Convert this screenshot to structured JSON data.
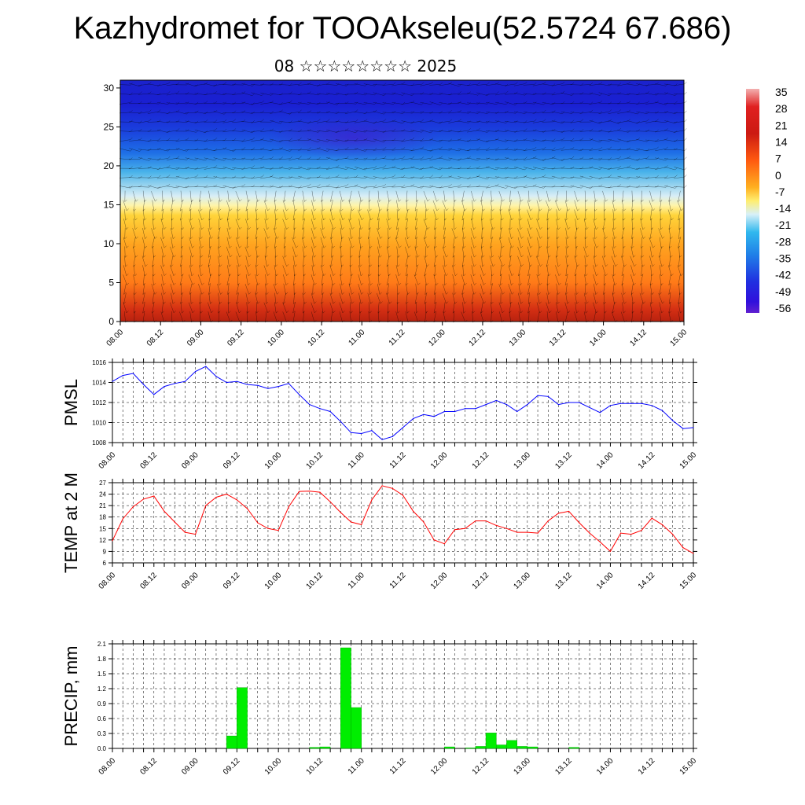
{
  "header": {
    "title": "Kazhydromet for TOOAkseleu(52.5724 67.686)",
    "subtitle": "08 ☆☆☆☆☆☆☆☆ 2025"
  },
  "colors": {
    "pmsl_line": "#0000ff",
    "temp_line": "#ff0000",
    "precip_bar": "#00ee00",
    "grid": "#000000"
  },
  "chart_data": [
    {
      "type": "heatmap",
      "name": "upper-air-section",
      "x_ticks": [
        "08.00",
        "08.12",
        "09.00",
        "09.12",
        "10.00",
        "10.12",
        "11.00",
        "11.12",
        "12.00",
        "12.12",
        "13.00",
        "13.12",
        "14.00",
        "14.12",
        "15.00"
      ],
      "y_ticks": [
        "0",
        "5",
        "10",
        "15",
        "20",
        "25",
        "30"
      ],
      "ylim": [
        0,
        31
      ],
      "colorbar_labels": [
        "35",
        "28",
        "21",
        "14",
        "7",
        "0",
        "-7",
        "-14",
        "-21",
        "-28",
        "-35",
        "-42",
        "-49",
        "-56"
      ],
      "overlay": "wind-barbs"
    },
    {
      "type": "line",
      "name": "pmsl",
      "ylabel": "PMSL",
      "ylim": [
        1008,
        1016
      ],
      "y_ticks": [
        "1008",
        "1010",
        "1012",
        "1014",
        "1016"
      ],
      "x_ticks": [
        "08.00",
        "08.12",
        "09.00",
        "09.12",
        "10.00",
        "10.12",
        "11.00",
        "11.12",
        "12.00",
        "12.12",
        "13.00",
        "13.12",
        "14.00",
        "14.12",
        "15.00"
      ],
      "x_range": [
        0,
        56
      ],
      "x": [
        0,
        1,
        2,
        3,
        4,
        5,
        6,
        7,
        8,
        9,
        10,
        11,
        12,
        13,
        14,
        15,
        16,
        17,
        18,
        19,
        20,
        21,
        22,
        23,
        24,
        25,
        26,
        27,
        28,
        29,
        30,
        31,
        32,
        33,
        34,
        35,
        36,
        37,
        38,
        39,
        40,
        41,
        42,
        43,
        44,
        45,
        46,
        47,
        48,
        49,
        50,
        51,
        52,
        53,
        54,
        55,
        56
      ],
      "values": [
        1014.1,
        1014.7,
        1014.9,
        1013.8,
        1012.8,
        1013.6,
        1013.9,
        1014.1,
        1015.1,
        1015.6,
        1014.6,
        1014.0,
        1014.1,
        1013.8,
        1013.7,
        1013.4,
        1013.6,
        1013.9,
        1012.8,
        1011.8,
        1011.4,
        1011.1,
        1010.1,
        1009.0,
        1008.9,
        1009.2,
        1008.3,
        1008.6,
        1009.5,
        1010.4,
        1010.8,
        1010.6,
        1011.1,
        1011.1,
        1011.4,
        1011.4,
        1011.8,
        1012.2,
        1011.8,
        1011.1,
        1011.8,
        1012.7,
        1012.6,
        1011.8,
        1012.0,
        1012.0,
        1011.5,
        1011.0,
        1011.7,
        1011.9,
        1011.9,
        1011.9,
        1011.7,
        1011.2,
        1010.2,
        1009.4,
        1009.5
      ]
    },
    {
      "type": "line",
      "name": "temp-2m",
      "ylabel": "TEMP at 2 M",
      "ylim": [
        6,
        27
      ],
      "y_ticks": [
        "6",
        "9",
        "12",
        "15",
        "18",
        "21",
        "24",
        "27"
      ],
      "x_ticks": [
        "08.00",
        "08.12",
        "09.00",
        "09.12",
        "10.00",
        "10.12",
        "11.00",
        "11.12",
        "12.00",
        "12.12",
        "13.00",
        "13.12",
        "14.00",
        "14.12",
        "15.00"
      ],
      "x_range": [
        0,
        56
      ],
      "x": [
        0,
        1,
        2,
        3,
        4,
        5,
        6,
        7,
        8,
        9,
        10,
        11,
        12,
        13,
        14,
        15,
        16,
        17,
        18,
        19,
        20,
        21,
        22,
        23,
        24,
        25,
        26,
        27,
        28,
        29,
        30,
        31,
        32,
        33,
        34,
        35,
        36,
        37,
        38,
        39,
        40,
        41,
        42,
        43,
        44,
        45,
        46,
        47,
        48,
        49,
        50,
        51,
        52,
        53,
        54,
        55,
        56
      ],
      "values": [
        11.8,
        17.5,
        20.7,
        22.7,
        23.5,
        19.5,
        16.7,
        14.0,
        13.5,
        21.0,
        23.2,
        24.0,
        22.5,
        20.2,
        16.5,
        15.0,
        14.5,
        20.7,
        24.7,
        24.8,
        24.5,
        22.0,
        19.2,
        16.7,
        16.0,
        22.5,
        26.2,
        25.5,
        23.7,
        19.5,
        16.7,
        12.0,
        11.0,
        14.7,
        15.0,
        17.0,
        17.0,
        15.8,
        15.0,
        14.0,
        14.0,
        13.8,
        17.0,
        19.0,
        19.5,
        16.5,
        13.8,
        11.5,
        9.0,
        13.8,
        13.5,
        14.5,
        17.7,
        16.0,
        13.5,
        10.0,
        8.5
      ]
    },
    {
      "type": "bar",
      "name": "precip",
      "ylabel": "PRECIP, mm",
      "ylim": [
        0,
        2.1
      ],
      "y_ticks": [
        "0.0",
        "0.3",
        "0.6",
        "0.9",
        "1.2",
        "1.5",
        "1.8",
        "2.1"
      ],
      "x_ticks": [
        "08.00",
        "08.12",
        "09.00",
        "09.12",
        "10.00",
        "10.12",
        "11.00",
        "11.12",
        "12.00",
        "12.12",
        "13.00",
        "13.12",
        "14.00",
        "14.12",
        "15.00"
      ],
      "x_range": [
        0,
        56
      ],
      "bar_starts": [
        11,
        12,
        19,
        20,
        22,
        23,
        32,
        34,
        35,
        36,
        37,
        38,
        39,
        40,
        44
      ],
      "values": [
        0.25,
        1.22,
        0.02,
        0.03,
        2.02,
        0.82,
        0.03,
        0.01,
        0.04,
        0.31,
        0.07,
        0.16,
        0.04,
        0.03,
        0.02
      ]
    }
  ]
}
